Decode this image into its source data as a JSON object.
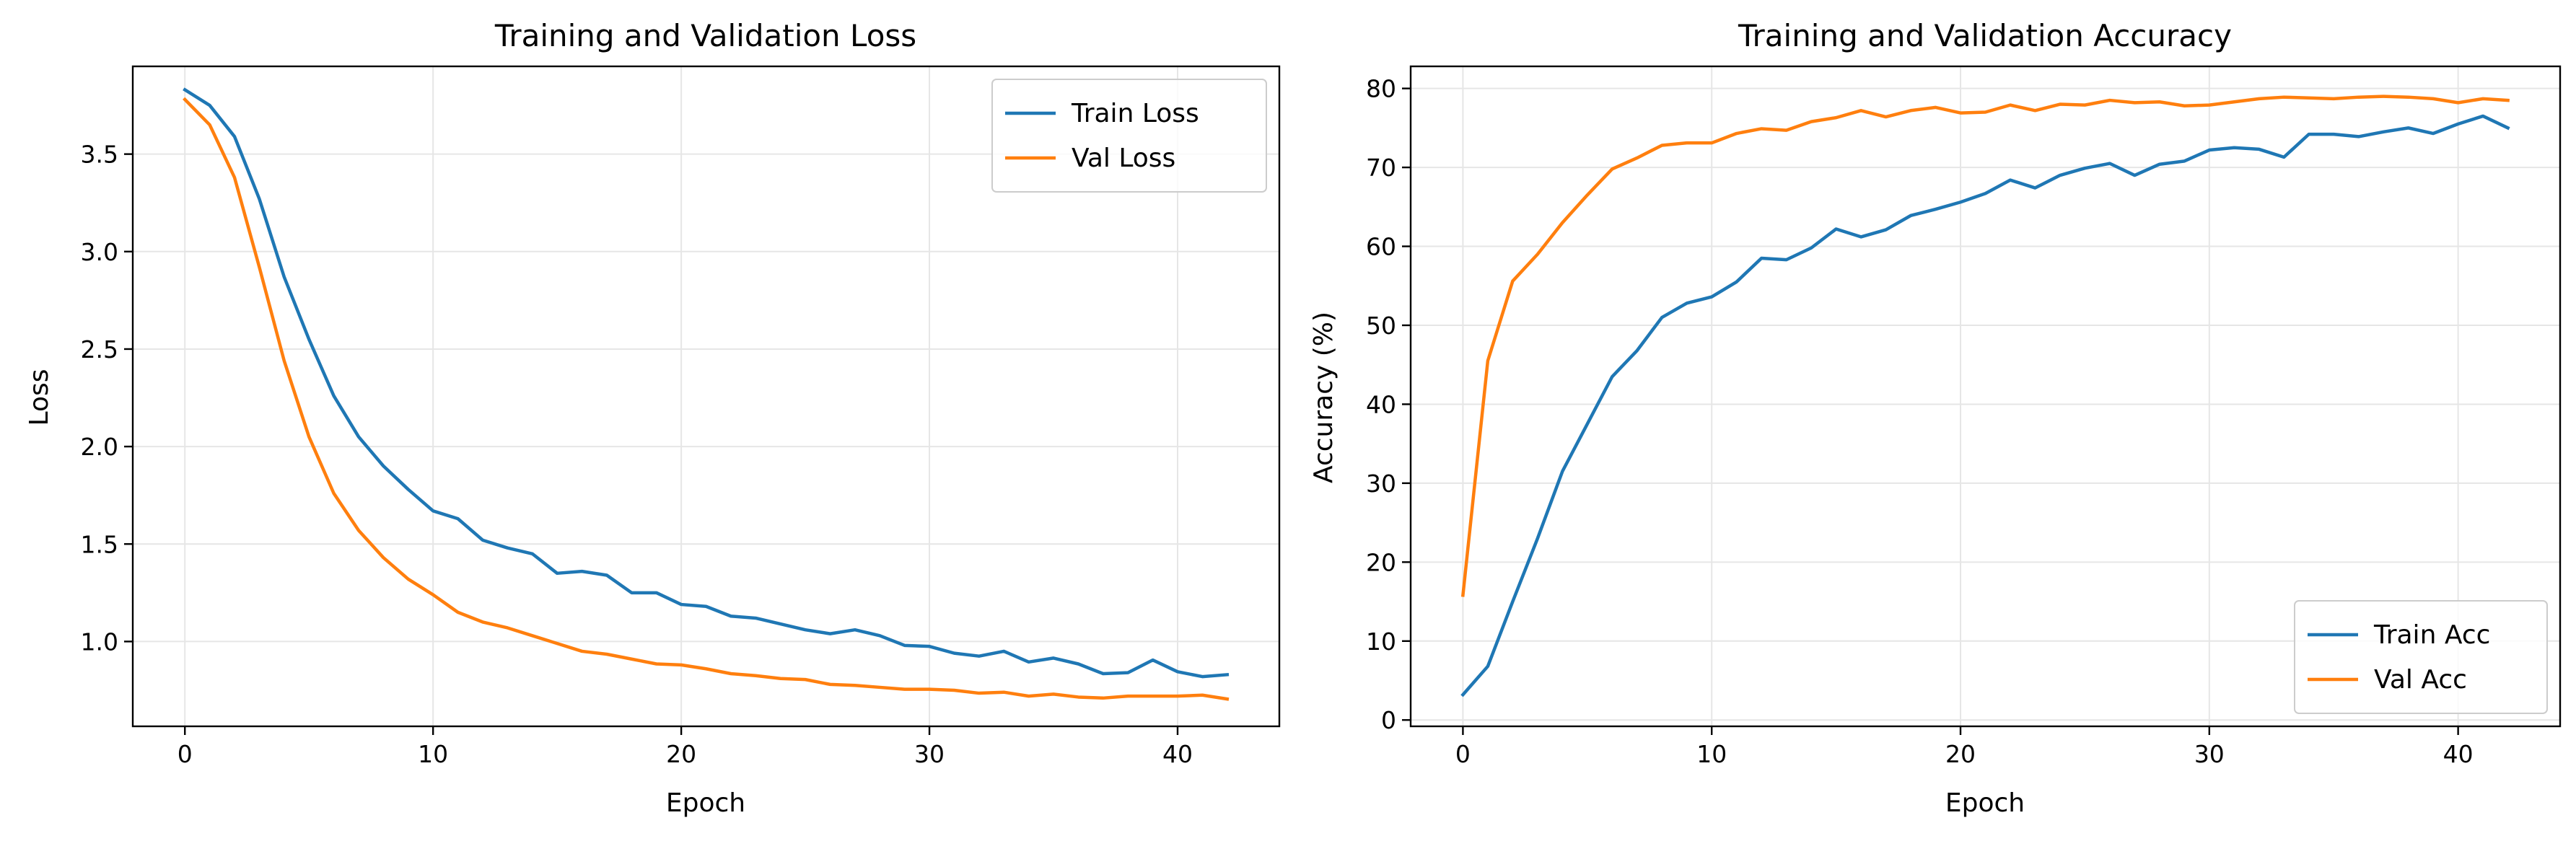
{
  "colors": {
    "train": "#1f77b4",
    "val": "#ff7f0e",
    "grid": "#e6e6e6",
    "axis": "#000000"
  },
  "chart_data": [
    {
      "type": "line",
      "title": "Training and Validation Loss",
      "xlabel": "Epoch",
      "ylabel": "Loss",
      "xlim": [
        -2.1,
        44.1
      ],
      "ylim": [
        0.565,
        3.95
      ],
      "xticks": [
        0,
        10,
        20,
        30,
        40
      ],
      "xtick_labels": [
        "0",
        "10",
        "20",
        "30",
        "40"
      ],
      "yticks": [
        1.0,
        1.5,
        2.0,
        2.5,
        3.0,
        3.5
      ],
      "ytick_labels": [
        "1.0",
        "1.5",
        "2.0",
        "2.5",
        "3.0",
        "3.5"
      ],
      "grid": true,
      "legend": "upper-right",
      "x": [
        0,
        1,
        2,
        3,
        4,
        5,
        6,
        7,
        8,
        9,
        10,
        11,
        12,
        13,
        14,
        15,
        16,
        17,
        18,
        19,
        20,
        21,
        22,
        23,
        24,
        25,
        26,
        27,
        28,
        29,
        30,
        31,
        32,
        33,
        34,
        35,
        36,
        37,
        38,
        39,
        40,
        41,
        42
      ],
      "series": [
        {
          "name": "Train Loss",
          "color_key": "train",
          "values": [
            3.83,
            3.75,
            3.59,
            3.27,
            2.87,
            2.55,
            2.26,
            2.05,
            1.9,
            1.78,
            1.67,
            1.63,
            1.52,
            1.48,
            1.45,
            1.35,
            1.36,
            1.34,
            1.25,
            1.25,
            1.19,
            1.18,
            1.13,
            1.12,
            1.09,
            1.06,
            1.04,
            1.06,
            1.03,
            0.98,
            0.975,
            0.94,
            0.925,
            0.95,
            0.895,
            0.915,
            0.885,
            0.835,
            0.84,
            0.905,
            0.845,
            0.82,
            0.83
          ]
        },
        {
          "name": "Val Loss",
          "color_key": "val",
          "values": [
            3.78,
            3.65,
            3.38,
            2.92,
            2.44,
            2.05,
            1.76,
            1.57,
            1.43,
            1.32,
            1.24,
            1.15,
            1.1,
            1.07,
            1.03,
            0.99,
            0.95,
            0.935,
            0.91,
            0.885,
            0.88,
            0.86,
            0.835,
            0.825,
            0.81,
            0.805,
            0.78,
            0.775,
            0.765,
            0.755,
            0.755,
            0.75,
            0.735,
            0.74,
            0.72,
            0.73,
            0.715,
            0.71,
            0.72,
            0.72,
            0.72,
            0.725,
            0.705
          ]
        }
      ]
    },
    {
      "type": "line",
      "title": "Training and Validation Accuracy",
      "xlabel": "Epoch",
      "ylabel": "Accuracy (%)",
      "xlim": [
        -2.1,
        44.1
      ],
      "ylim": [
        -0.8,
        82.8
      ],
      "xticks": [
        0,
        10,
        20,
        30,
        40
      ],
      "xtick_labels": [
        "0",
        "10",
        "20",
        "30",
        "40"
      ],
      "yticks": [
        0,
        10,
        20,
        30,
        40,
        50,
        60,
        70,
        80
      ],
      "ytick_labels": [
        "0",
        "10",
        "20",
        "30",
        "40",
        "50",
        "60",
        "70",
        "80"
      ],
      "grid": true,
      "legend": "lower-right",
      "x": [
        0,
        1,
        2,
        3,
        4,
        5,
        6,
        7,
        8,
        9,
        10,
        11,
        12,
        13,
        14,
        15,
        16,
        17,
        18,
        19,
        20,
        21,
        22,
        23,
        24,
        25,
        26,
        27,
        28,
        29,
        30,
        31,
        32,
        33,
        34,
        35,
        36,
        37,
        38,
        39,
        40,
        41,
        42
      ],
      "series": [
        {
          "name": "Train Acc",
          "color_key": "train",
          "values": [
            3.2,
            6.8,
            15.0,
            23.0,
            31.5,
            37.5,
            43.5,
            46.8,
            51.0,
            52.8,
            53.6,
            55.5,
            58.5,
            58.3,
            59.8,
            62.2,
            61.2,
            62.1,
            63.9,
            64.7,
            65.6,
            66.7,
            68.4,
            67.4,
            69.0,
            69.9,
            70.5,
            69.0,
            70.4,
            70.8,
            72.2,
            72.5,
            72.3,
            71.3,
            74.2,
            74.2,
            73.9,
            74.5,
            75.0,
            74.3,
            75.5,
            76.5,
            75.0
          ]
        },
        {
          "name": "Val Acc",
          "color_key": "val",
          "values": [
            15.8,
            45.5,
            55.6,
            59.0,
            63.0,
            66.5,
            69.8,
            71.2,
            72.8,
            73.1,
            73.1,
            74.3,
            74.9,
            74.7,
            75.8,
            76.3,
            77.2,
            76.4,
            77.2,
            77.6,
            76.9,
            77.0,
            77.9,
            77.2,
            78.0,
            77.9,
            78.5,
            78.2,
            78.3,
            77.8,
            77.9,
            78.3,
            78.7,
            78.9,
            78.8,
            78.7,
            78.9,
            79.0,
            78.9,
            78.7,
            78.2,
            78.7,
            78.5
          ]
        }
      ]
    }
  ]
}
